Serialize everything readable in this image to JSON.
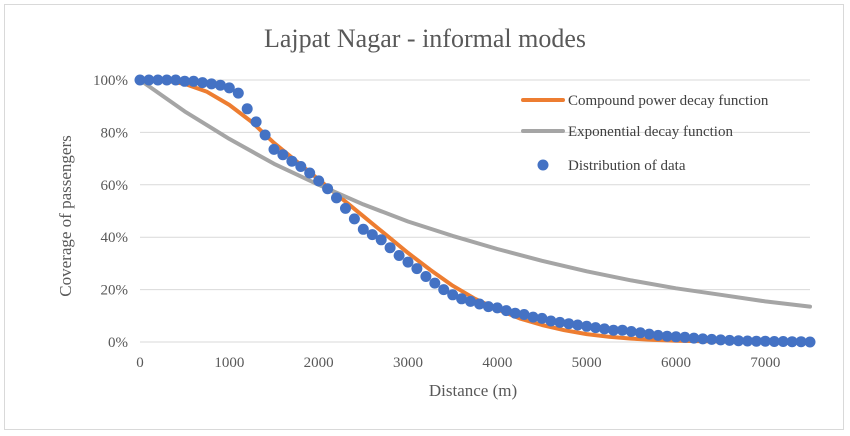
{
  "chart_data": {
    "type": "scatter",
    "title": "Lajpat Nagar - informal modes",
    "xlabel": "Distance (m)",
    "ylabel": "Coverage of passengers",
    "xlim": [
      0,
      7500
    ],
    "ylim": [
      0,
      100
    ],
    "x_ticks": [
      0,
      1000,
      2000,
      3000,
      4000,
      5000,
      6000,
      7000
    ],
    "x_tick_labels": [
      "0",
      "1000",
      "2000",
      "3000",
      "4000",
      "5000",
      "6000",
      "7000"
    ],
    "y_ticks": [
      0,
      20,
      40,
      60,
      80,
      100
    ],
    "y_tick_labels": [
      "0%",
      "20%",
      "40%",
      "60%",
      "80%",
      "100%"
    ],
    "grid": "horizontal",
    "legend_position": "top-right",
    "series": [
      {
        "name": "Compound power decay function",
        "kind": "line",
        "color": "#ed7d31",
        "points": [
          [
            0,
            100
          ],
          [
            250,
            100
          ],
          [
            500,
            98.5
          ],
          [
            750,
            95.5
          ],
          [
            1000,
            90.5
          ],
          [
            1250,
            84
          ],
          [
            1500,
            76
          ],
          [
            1750,
            69
          ],
          [
            2000,
            62
          ],
          [
            2250,
            55
          ],
          [
            2500,
            48
          ],
          [
            2750,
            41
          ],
          [
            3000,
            34
          ],
          [
            3250,
            27.5
          ],
          [
            3500,
            21.5
          ],
          [
            3750,
            16.5
          ],
          [
            4000,
            12.5
          ],
          [
            4250,
            9
          ],
          [
            4500,
            6.5
          ],
          [
            4750,
            4.5
          ],
          [
            5000,
            3
          ],
          [
            5250,
            2
          ],
          [
            5500,
            1.3
          ],
          [
            5750,
            0.8
          ],
          [
            6000,
            0.5
          ],
          [
            6500,
            0.2
          ],
          [
            7000,
            0.1
          ],
          [
            7500,
            0
          ]
        ]
      },
      {
        "name": "Exponential decay function",
        "kind": "line",
        "color": "#a5a5a5",
        "points": [
          [
            0,
            100
          ],
          [
            500,
            88
          ],
          [
            1000,
            77.5
          ],
          [
            1500,
            68
          ],
          [
            2000,
            60
          ],
          [
            2500,
            52.5
          ],
          [
            3000,
            46
          ],
          [
            3500,
            40.5
          ],
          [
            4000,
            35.5
          ],
          [
            4500,
            31
          ],
          [
            5000,
            27
          ],
          [
            5500,
            23.5
          ],
          [
            6000,
            20.5
          ],
          [
            6500,
            18
          ],
          [
            7000,
            15.5
          ],
          [
            7500,
            13.5
          ]
        ]
      },
      {
        "name": "Distribution of data",
        "kind": "scatter",
        "color": "#4472c4",
        "points": [
          [
            0,
            100
          ],
          [
            100,
            100
          ],
          [
            200,
            100
          ],
          [
            300,
            100
          ],
          [
            400,
            100
          ],
          [
            500,
            99.5
          ],
          [
            600,
            99.5
          ],
          [
            700,
            99
          ],
          [
            800,
            98.5
          ],
          [
            900,
            98
          ],
          [
            1000,
            97
          ],
          [
            1100,
            95
          ],
          [
            1200,
            89
          ],
          [
            1300,
            84
          ],
          [
            1400,
            79
          ],
          [
            1500,
            73.5
          ],
          [
            1600,
            71.5
          ],
          [
            1700,
            69
          ],
          [
            1800,
            67
          ],
          [
            1900,
            64.5
          ],
          [
            2000,
            61.5
          ],
          [
            2100,
            58.5
          ],
          [
            2200,
            55
          ],
          [
            2300,
            51
          ],
          [
            2400,
            47
          ],
          [
            2500,
            43
          ],
          [
            2600,
            41
          ],
          [
            2700,
            39
          ],
          [
            2800,
            36
          ],
          [
            2900,
            33
          ],
          [
            3000,
            30.5
          ],
          [
            3100,
            28
          ],
          [
            3200,
            25
          ],
          [
            3300,
            22.5
          ],
          [
            3400,
            20
          ],
          [
            3500,
            18
          ],
          [
            3600,
            16.5
          ],
          [
            3700,
            15.5
          ],
          [
            3800,
            14.5
          ],
          [
            3900,
            13.5
          ],
          [
            4000,
            13
          ],
          [
            4100,
            12
          ],
          [
            4200,
            11
          ],
          [
            4300,
            10.5
          ],
          [
            4400,
            9.5
          ],
          [
            4500,
            9
          ],
          [
            4600,
            8
          ],
          [
            4700,
            7.5
          ],
          [
            4800,
            7
          ],
          [
            4900,
            6.5
          ],
          [
            5000,
            6
          ],
          [
            5100,
            5.5
          ],
          [
            5200,
            5
          ],
          [
            5300,
            4.5
          ],
          [
            5400,
            4.5
          ],
          [
            5500,
            4
          ],
          [
            5600,
            3.5
          ],
          [
            5700,
            3
          ],
          [
            5800,
            2.5
          ],
          [
            5900,
            2.2
          ],
          [
            6000,
            2
          ],
          [
            6100,
            1.8
          ],
          [
            6200,
            1.5
          ],
          [
            6300,
            1.2
          ],
          [
            6400,
            1
          ],
          [
            6500,
            0.8
          ],
          [
            6600,
            0.6
          ],
          [
            6700,
            0.5
          ],
          [
            6800,
            0.4
          ],
          [
            6900,
            0.3
          ],
          [
            7000,
            0.3
          ],
          [
            7100,
            0.2
          ],
          [
            7200,
            0.2
          ],
          [
            7300,
            0.1
          ],
          [
            7400,
            0.1
          ],
          [
            7500,
            0
          ]
        ]
      }
    ]
  }
}
